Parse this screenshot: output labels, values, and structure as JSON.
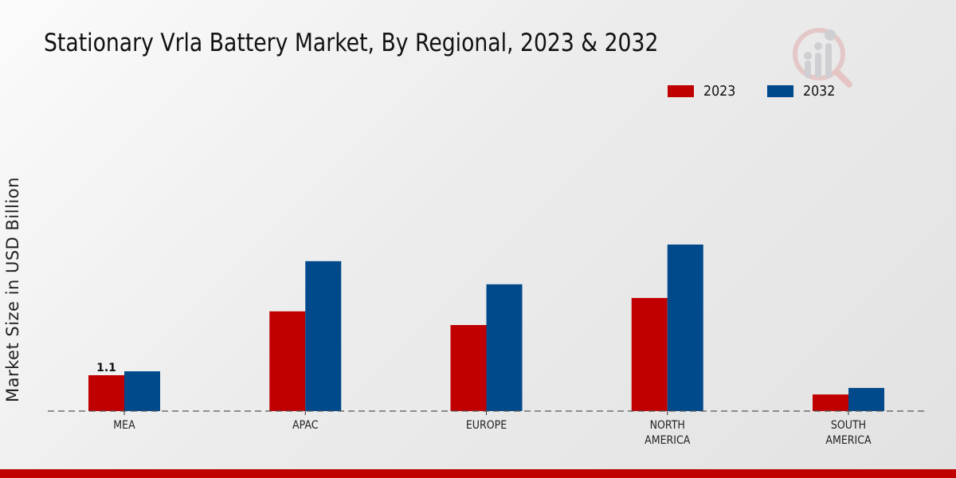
{
  "chart_data": {
    "type": "bar",
    "title": "Stationary Vrla Battery Market, By Regional, 2023 & 2032",
    "xlabel": "",
    "ylabel": "Market Size in USD Billion",
    "categories": [
      "MEA",
      "APAC",
      "EUROPE",
      "NORTH\nAMERICA",
      "SOUTH\nAMERICA"
    ],
    "series": [
      {
        "name": "2023",
        "color": "#c00000",
        "values": [
          1.1,
          3.06,
          2.64,
          3.47,
          0.51
        ]
      },
      {
        "name": "2032",
        "color": "#004a8c",
        "values": [
          1.22,
          4.6,
          3.89,
          5.11,
          0.71
        ]
      }
    ],
    "data_labels": [
      {
        "series": "2023",
        "category": "MEA",
        "text": "1.1"
      }
    ],
    "ylim": [
      0,
      6.0
    ],
    "grid": false,
    "legend_position": "top-right"
  },
  "footer_color": "#c00000"
}
